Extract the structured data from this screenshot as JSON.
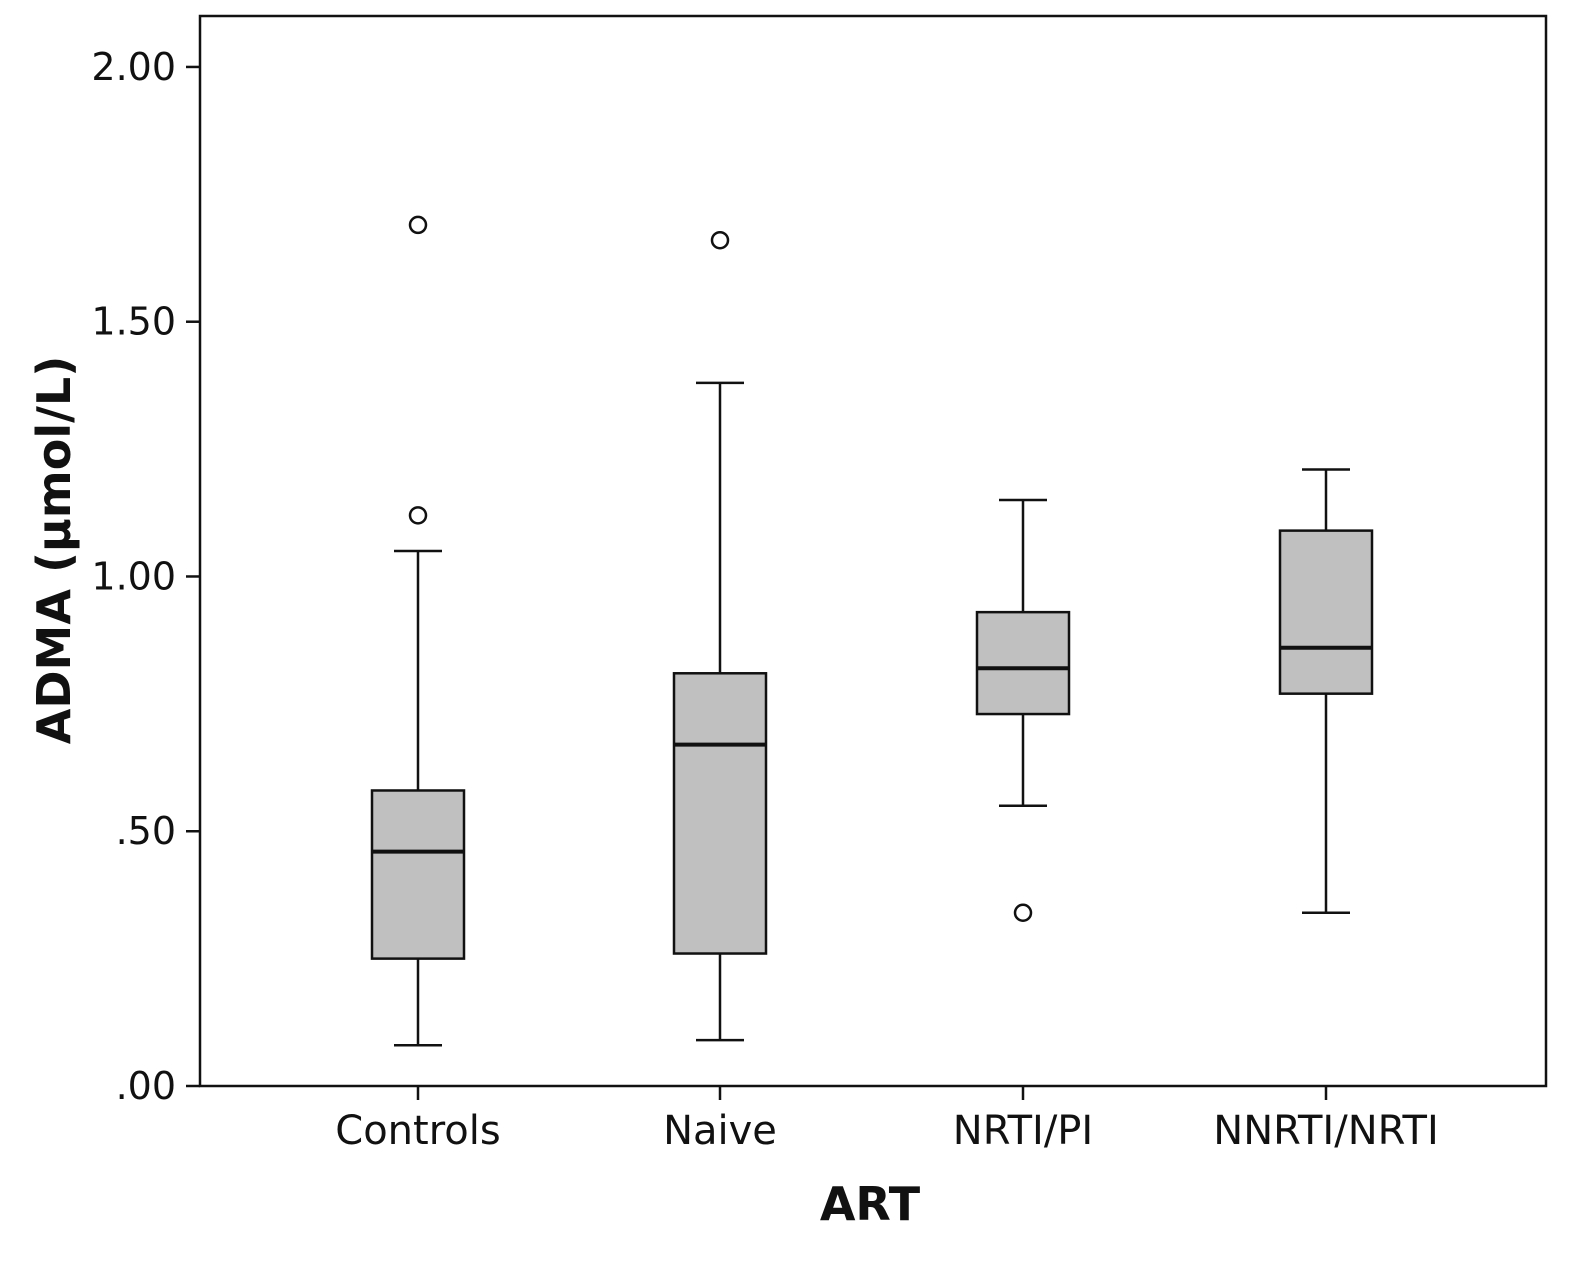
{
  "chart_data": {
    "type": "boxplot",
    "title": "",
    "xlabel": "ART",
    "ylabel": "ADMA (µmol/L)",
    "ylim": [
      0,
      2.1
    ],
    "yticks": [
      0,
      0.5,
      1.0,
      1.5,
      2.0
    ],
    "ytick_labels": [
      ".00",
      ".50",
      "1.00",
      "1.50",
      "2.00"
    ],
    "grid": false,
    "categories": [
      "Controls",
      "Naive",
      "NRTI/PI",
      "NNRTI/NRTI"
    ],
    "boxes": [
      {
        "category": "Controls",
        "whisker_low": 0.08,
        "q1": 0.25,
        "median": 0.46,
        "q3": 0.58,
        "whisker_high": 1.05,
        "outliers": [
          1.12,
          1.69
        ]
      },
      {
        "category": "Naive",
        "whisker_low": 0.09,
        "q1": 0.26,
        "median": 0.67,
        "q3": 0.81,
        "whisker_high": 1.38,
        "outliers": [
          1.66
        ]
      },
      {
        "category": "NRTI/PI",
        "whisker_low": 0.55,
        "q1": 0.73,
        "median": 0.82,
        "q3": 0.93,
        "whisker_high": 1.15,
        "outliers": [
          0.34
        ]
      },
      {
        "category": "NNRTI/NRTI",
        "whisker_low": 0.34,
        "q1": 0.77,
        "median": 0.86,
        "q3": 1.09,
        "whisker_high": 1.21,
        "outliers": []
      }
    ],
    "colors": {
      "box_fill": "#c0c0c0",
      "stroke": "#111111",
      "background": "#ffffff"
    }
  }
}
